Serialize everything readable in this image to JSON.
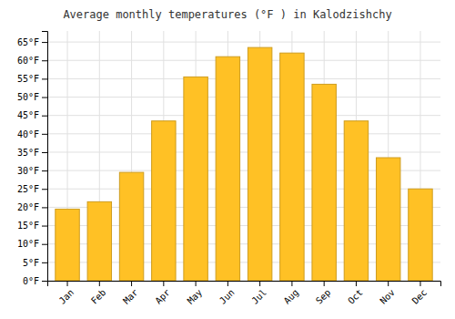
{
  "chart_data": {
    "type": "bar",
    "title": "Average monthly temperatures (°F ) in Kalodzishchy",
    "categories": [
      "Jan",
      "Feb",
      "Mar",
      "Apr",
      "May",
      "Jun",
      "Jul",
      "Aug",
      "Sep",
      "Oct",
      "Nov",
      "Dec"
    ],
    "values": [
      19.5,
      21.5,
      29.5,
      43.5,
      55.5,
      61,
      63.5,
      62,
      53.5,
      43.5,
      33.5,
      25
    ],
    "color": "#FFC125",
    "ylim": [
      0,
      68
    ],
    "yticks": [
      {
        "value": 0,
        "label": "0°F"
      },
      {
        "value": 5,
        "label": "5°F"
      },
      {
        "value": 10,
        "label": "10°F"
      },
      {
        "value": 15,
        "label": "15°F"
      },
      {
        "value": 20,
        "label": "20°F"
      },
      {
        "value": 25,
        "label": "25°F"
      },
      {
        "value": 30,
        "label": "30°F"
      },
      {
        "value": 35,
        "label": "35°F"
      },
      {
        "value": 40,
        "label": "40°F"
      },
      {
        "value": 45,
        "label": "45°F"
      },
      {
        "value": 50,
        "label": "50°F"
      },
      {
        "value": 55,
        "label": "55°F"
      },
      {
        "value": 60,
        "label": "60°F"
      },
      {
        "value": 65,
        "label": "65°F"
      }
    ],
    "grid": true
  }
}
